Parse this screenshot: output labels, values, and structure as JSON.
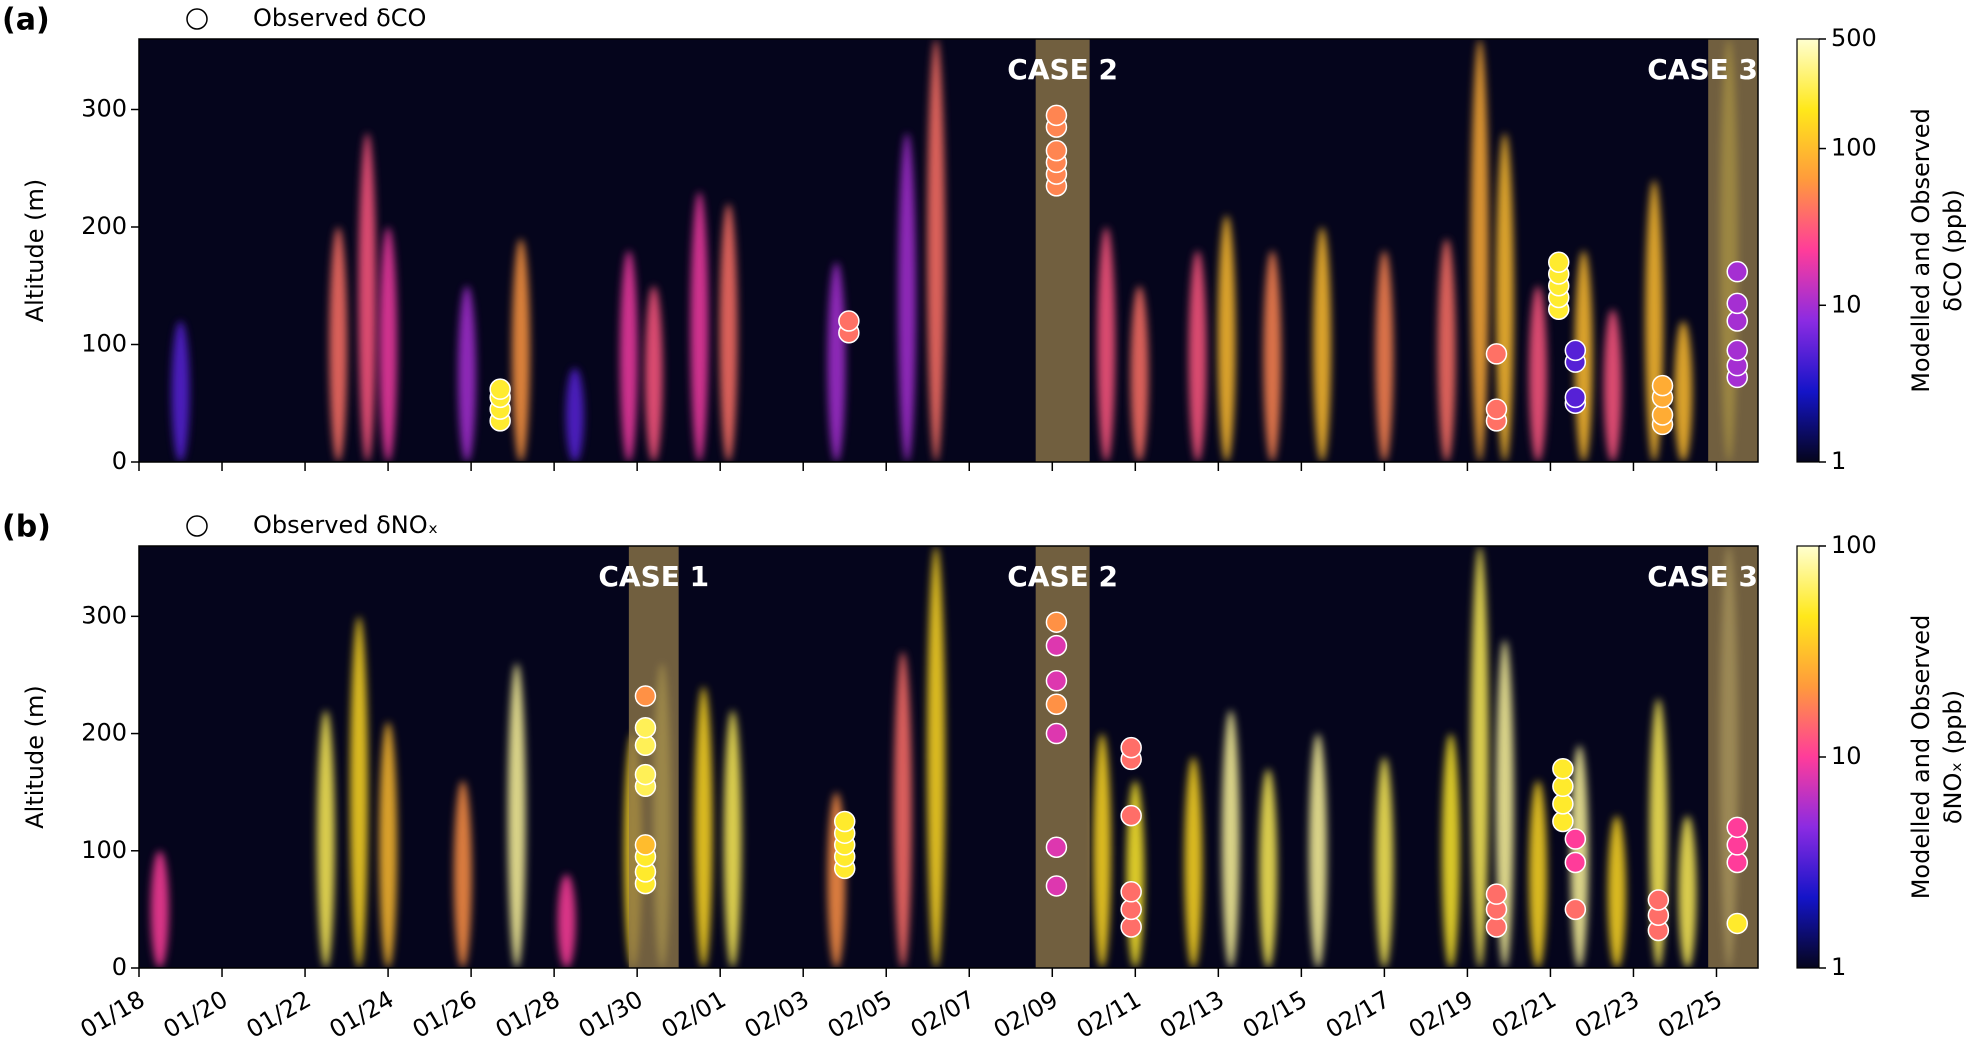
{
  "chart_data": [
    {
      "type": "scatter",
      "panel_label": "(a)",
      "y_label": "Altitude (m)",
      "legend": "Observed δCO",
      "colorbar_label": [
        "Modelled and Observed",
        "δCO (ppb)"
      ],
      "xlim": [
        18,
        57
      ],
      "ylim": [
        0,
        360
      ],
      "yticks": [
        0,
        100,
        200,
        300
      ],
      "xticks": [
        18,
        20,
        22,
        24,
        26,
        28,
        30,
        32,
        34,
        36,
        38,
        40,
        42,
        44,
        46,
        48,
        50,
        52,
        54,
        56
      ],
      "clim": [
        1,
        500
      ],
      "cticks": [
        1,
        10,
        100,
        500
      ],
      "log_color": true,
      "cases": [
        {
          "label": "CASE 2",
          "x": [
            39.6,
            40.9
          ]
        },
        {
          "label": "CASE 3",
          "x": [
            55.8,
            57
          ]
        }
      ],
      "model": {
        "x": [
          19.0,
          22.8,
          23.5,
          24.0,
          25.9,
          27.2,
          28.5,
          29.8,
          30.4,
          31.5,
          32.2,
          34.8,
          36.5,
          37.2,
          41.3,
          42.1,
          43.5,
          44.2,
          45.3,
          46.5,
          48.0,
          49.5,
          50.3,
          50.9,
          51.7,
          52.8,
          53.5,
          54.5,
          55.2,
          56.3
        ],
        "y": [
          120,
          200,
          280,
          200,
          150,
          190,
          80,
          180,
          150,
          230,
          220,
          170,
          280,
          360,
          200,
          150,
          180,
          210,
          180,
          200,
          180,
          190,
          360,
          280,
          150,
          180,
          130,
          240,
          120,
          360
        ],
        "values": [
          5,
          40,
          30,
          20,
          10,
          60,
          5,
          20,
          30,
          20,
          40,
          10,
          10,
          40,
          30,
          40,
          30,
          100,
          50,
          100,
          50,
          40,
          80,
          100,
          30,
          100,
          30,
          100,
          100,
          200
        ]
      },
      "series": [
        {
          "name": "Observed δCO",
          "x": [
            26.7,
            26.7,
            26.7,
            26.7,
            35.1,
            35.1,
            40.1,
            40.1,
            40.1,
            40.1,
            40.1,
            40.1,
            50.7,
            50.7,
            50.7,
            52.2,
            52.2,
            52.2,
            52.2,
            52.2,
            52.6,
            52.6,
            52.6,
            52.6,
            54.7,
            54.7,
            54.7,
            54.7,
            56.5,
            56.5,
            56.5,
            56.5,
            56.5,
            56.5
          ],
          "y": [
            35,
            45,
            55,
            62,
            110,
            120,
            235,
            245,
            255,
            265,
            285,
            295,
            35,
            45,
            92,
            130,
            140,
            150,
            160,
            170,
            50,
            55,
            85,
            95,
            32,
            40,
            55,
            65,
            72,
            82,
            95,
            120,
            135,
            162
          ],
          "values": [
            200,
            200,
            200,
            200,
            40,
            40,
            50,
            50,
            50,
            50,
            50,
            50,
            40,
            40,
            40,
            200,
            200,
            200,
            200,
            200,
            5,
            5,
            5,
            5,
            80,
            80,
            80,
            80,
            10,
            10,
            10,
            10,
            10,
            10
          ]
        }
      ]
    },
    {
      "type": "scatter",
      "panel_label": "(b)",
      "y_label": "Altitude (m)",
      "legend": "Observed δNOₓ",
      "colorbar_label": [
        "Modelled and Observed",
        "δNOₓ (ppb)"
      ],
      "xlim": [
        18,
        57
      ],
      "ylim": [
        0,
        360
      ],
      "yticks": [
        0,
        100,
        200,
        300
      ],
      "xticks": [
        {
          "value": 18,
          "label": "01/18"
        },
        {
          "value": 20,
          "label": "01/20"
        },
        {
          "value": 22,
          "label": "01/22"
        },
        {
          "value": 24,
          "label": "01/24"
        },
        {
          "value": 26,
          "label": "01/26"
        },
        {
          "value": 28,
          "label": "01/28"
        },
        {
          "value": 30,
          "label": "01/30"
        },
        {
          "value": 32,
          "label": "02/01"
        },
        {
          "value": 34,
          "label": "02/03"
        },
        {
          "value": 36,
          "label": "02/05"
        },
        {
          "value": 38,
          "label": "02/07"
        },
        {
          "value": 40,
          "label": "02/09"
        },
        {
          "value": 42,
          "label": "02/11"
        },
        {
          "value": 44,
          "label": "02/13"
        },
        {
          "value": 46,
          "label": "02/15"
        },
        {
          "value": 48,
          "label": "02/17"
        },
        {
          "value": 50,
          "label": "02/19"
        },
        {
          "value": 52,
          "label": "02/21"
        },
        {
          "value": 54,
          "label": "02/23"
        },
        {
          "value": 56,
          "label": "02/25"
        }
      ],
      "clim": [
        1,
        100
      ],
      "cticks": [
        1,
        10,
        100
      ],
      "log_color": true,
      "cases": [
        {
          "label": "CASE 1",
          "x": [
            29.8,
            31.0
          ]
        },
        {
          "label": "CASE 2",
          "x": [
            39.6,
            40.9
          ]
        },
        {
          "label": "CASE 3",
          "x": [
            55.8,
            57
          ]
        }
      ],
      "model": {
        "x": [
          18.5,
          22.5,
          23.3,
          24.0,
          25.8,
          27.1,
          28.3,
          29.9,
          30.6,
          31.6,
          32.3,
          34.8,
          36.4,
          37.2,
          41.2,
          42.0,
          43.4,
          44.3,
          45.2,
          46.4,
          48.0,
          49.6,
          50.3,
          50.9,
          51.7,
          52.7,
          53.6,
          54.6,
          55.3,
          56.3
        ],
        "y": [
          100,
          220,
          300,
          210,
          160,
          260,
          80,
          200,
          260,
          240,
          220,
          150,
          270,
          360,
          200,
          160,
          180,
          220,
          170,
          200,
          180,
          200,
          360,
          280,
          160,
          190,
          130,
          230,
          130,
          360
        ],
        "values": [
          10,
          60,
          40,
          30,
          20,
          80,
          10,
          40,
          60,
          40,
          60,
          20,
          15,
          40,
          40,
          50,
          40,
          80,
          60,
          80,
          60,
          50,
          60,
          80,
          40,
          80,
          40,
          60,
          60,
          80
        ]
      },
      "series": [
        {
          "name": "Observed δNOₓ",
          "x": [
            30.2,
            30.2,
            30.2,
            30.2,
            30.2,
            30.2,
            30.2,
            30.2,
            30.2,
            35.0,
            35.0,
            35.0,
            35.0,
            35.0,
            40.1,
            40.1,
            40.1,
            40.1,
            40.1,
            40.1,
            40.1,
            41.9,
            41.9,
            41.9,
            41.9,
            41.9,
            41.9,
            50.7,
            50.7,
            50.7,
            52.3,
            52.3,
            52.3,
            52.3,
            52.6,
            52.6,
            52.6,
            54.6,
            54.6,
            54.6,
            56.5,
            56.5,
            56.5,
            56.5
          ],
          "y": [
            72,
            82,
            95,
            105,
            155,
            165,
            190,
            205,
            232,
            85,
            95,
            105,
            115,
            125,
            70,
            103,
            200,
            225,
            245,
            275,
            295,
            35,
            50,
            65,
            130,
            178,
            188,
            35,
            50,
            63,
            125,
            140,
            155,
            170,
            50,
            90,
            110,
            32,
            45,
            58,
            38,
            90,
            105,
            120
          ],
          "values": [
            50,
            50,
            50,
            30,
            60,
            60,
            60,
            60,
            20,
            50,
            50,
            50,
            50,
            50,
            8,
            8,
            8,
            20,
            8,
            8,
            20,
            15,
            15,
            15,
            15,
            15,
            15,
            15,
            15,
            15,
            50,
            50,
            50,
            50,
            15,
            10,
            10,
            15,
            15,
            15,
            50,
            10,
            10,
            10
          ]
        }
      ]
    }
  ]
}
